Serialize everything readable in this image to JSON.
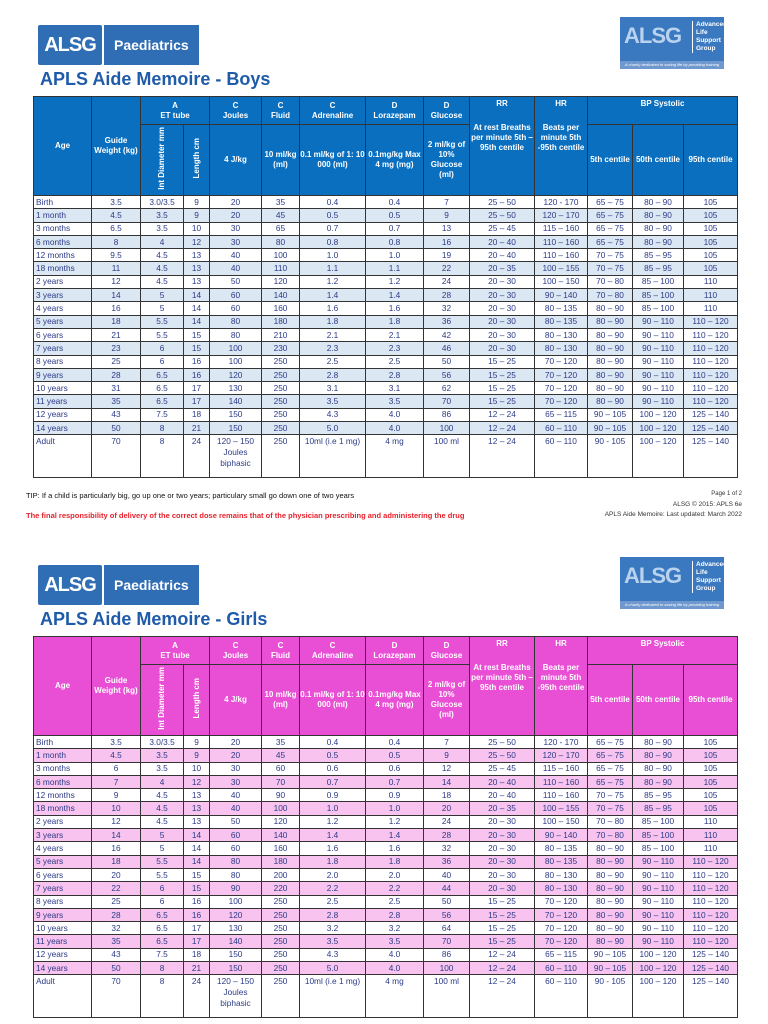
{
  "logo": {
    "name": "Paediatrics",
    "mark": "ALSG",
    "alsg_lines": [
      "Advanced",
      "Life",
      "Support",
      "Group"
    ],
    "alsg_tagline": "A charity dedicated to saving life by providing training"
  },
  "headers": {
    "age": "Age",
    "weight": "Guide Weight (kg)",
    "a": "A",
    "et": "ET tube",
    "c1": "C",
    "joules": "Joules",
    "c2": "C",
    "fluid": "Fluid",
    "c3": "C",
    "adrenaline": "Adrenaline",
    "d1": "D",
    "lorazepam": "Lorazepam",
    "d2": "D",
    "glucose": "Glucose",
    "rr": "RR",
    "hr": "HR",
    "bp": "BP Systolic",
    "diam": "Int Diameter mm",
    "length": "Length cm",
    "joules_sub": "4 J/kg",
    "fluid_sub": "10 ml/kg (ml)",
    "adr_sub": "0.1 ml/kg of 1: 10 000 (ml)",
    "lor_sub": "0.1mg/kg Max 4 mg (mg)",
    "glu_sub": "2 ml/kg of 10% Glucose (ml)",
    "rr_sub": "At rest Breaths per minute 5th – 95th centile",
    "hr_sub": "Beats per minute 5th -95th centile",
    "bp5": "5th centile",
    "bp50": "50th centile",
    "bp95": "95th centile"
  },
  "boys": {
    "title": "APLS Aide Memoire - Boys",
    "rows": [
      [
        "Birth",
        "3.5",
        "3.0/3.5",
        "9",
        "20",
        "35",
        "0.4",
        "0.4",
        "7",
        "25 – 50",
        "120 - 170",
        "65 – 75",
        "80 – 90",
        "105"
      ],
      [
        "1 month",
        "4.5",
        "3.5",
        "9",
        "20",
        "45",
        "0.5",
        "0.5",
        "9",
        "25 – 50",
        "120 – 170",
        "65 – 75",
        "80 – 90",
        "105"
      ],
      [
        "3 months",
        "6.5",
        "3.5",
        "10",
        "30",
        "65",
        "0.7",
        "0.7",
        "13",
        "25 – 45",
        "115 – 160",
        "65 – 75",
        "80 – 90",
        "105"
      ],
      [
        "6 months",
        "8",
        "4",
        "12",
        "30",
        "80",
        "0.8",
        "0.8",
        "16",
        "20 – 40",
        "110 – 160",
        "65 – 75",
        "80 – 90",
        "105"
      ],
      [
        "12 months",
        "9.5",
        "4.5",
        "13",
        "40",
        "100",
        "1.0",
        "1.0",
        "19",
        "20 – 40",
        "110 – 160",
        "70 – 75",
        "85 – 95",
        "105"
      ],
      [
        "18 months",
        "11",
        "4.5",
        "13",
        "40",
        "110",
        "1.1",
        "1.1",
        "22",
        "20 – 35",
        "100 – 155",
        "70 – 75",
        "85 – 95",
        "105"
      ],
      [
        "2 years",
        "12",
        "4.5",
        "13",
        "50",
        "120",
        "1.2",
        "1.2",
        "24",
        "20 – 30",
        "100 – 150",
        "70 – 80",
        "85 – 100",
        "110"
      ],
      [
        "3 years",
        "14",
        "5",
        "14",
        "60",
        "140",
        "1.4",
        "1.4",
        "28",
        "20 – 30",
        "90 – 140",
        "70 – 80",
        "85 – 100",
        "110"
      ],
      [
        "4 years",
        "16",
        "5",
        "14",
        "60",
        "160",
        "1.6",
        "1.6",
        "32",
        "20 – 30",
        "80 – 135",
        "80 – 90",
        "85 – 100",
        "110"
      ],
      [
        "5 years",
        "18",
        "5.5",
        "14",
        "80",
        "180",
        "1.8",
        "1.8",
        "36",
        "20 – 30",
        "80 – 135",
        "80 – 90",
        "90 – 110",
        "110 – 120"
      ],
      [
        "6 years",
        "21",
        "5.5",
        "15",
        "80",
        "210",
        "2.1",
        "2.1",
        "42",
        "20 – 30",
        "80 – 130",
        "80 – 90",
        "90 – 110",
        "110 – 120"
      ],
      [
        "7 years",
        "23",
        "6",
        "15",
        "100",
        "230",
        "2.3",
        "2.3",
        "46",
        "20 – 30",
        "80 – 130",
        "80 – 90",
        "90 – 110",
        "110 – 120"
      ],
      [
        "8 years",
        "25",
        "6",
        "16",
        "100",
        "250",
        "2.5",
        "2.5",
        "50",
        "15 – 25",
        "70 – 120",
        "80 – 90",
        "90 – 110",
        "110 – 120"
      ],
      [
        "9 years",
        "28",
        "6.5",
        "16",
        "120",
        "250",
        "2.8",
        "2.8",
        "56",
        "15 – 25",
        "70 – 120",
        "80 – 90",
        "90 – 110",
        "110 – 120"
      ],
      [
        "10 years",
        "31",
        "6.5",
        "17",
        "130",
        "250",
        "3.1",
        "3.1",
        "62",
        "15 – 25",
        "70 – 120",
        "80 – 90",
        "90 – 110",
        "110 – 120"
      ],
      [
        "11 years",
        "35",
        "6.5",
        "17",
        "140",
        "250",
        "3.5",
        "3.5",
        "70",
        "15 – 25",
        "70 – 120",
        "80 – 90",
        "90 – 110",
        "110 – 120"
      ],
      [
        "12 years",
        "43",
        "7.5",
        "18",
        "150",
        "250",
        "4.3",
        "4.0",
        "86",
        "12 – 24",
        "65 – 115",
        "90 – 105",
        "100 – 120",
        "125 – 140"
      ],
      [
        "14 years",
        "50",
        "8",
        "21",
        "150",
        "250",
        "5.0",
        "4.0",
        "100",
        "12 – 24",
        "60 – 110",
        "90 – 105",
        "100 – 120",
        "125 – 140"
      ],
      [
        "Adult",
        "70",
        "8",
        "24",
        "120 – 150 Joules biphasic",
        "250",
        "10ml (i.e 1 mg)",
        "4 mg",
        "100 ml",
        "12 – 24",
        "60 – 110",
        "90 - 105",
        "100 – 120",
        "125 – 140"
      ]
    ]
  },
  "girls": {
    "title": "APLS Aide Memoire - Girls",
    "rows": [
      [
        "Birth",
        "3.5",
        "3.0/3.5",
        "9",
        "20",
        "35",
        "0.4",
        "0.4",
        "7",
        "25 – 50",
        "120 - 170",
        "65 – 75",
        "80 – 90",
        "105"
      ],
      [
        "1 month",
        "4.5",
        "3.5",
        "9",
        "20",
        "45",
        "0.5",
        "0.5",
        "9",
        "25 – 50",
        "120 – 170",
        "65 – 75",
        "80 – 90",
        "105"
      ],
      [
        "3 months",
        "6",
        "3.5",
        "10",
        "30",
        "60",
        "0.6",
        "0.6",
        "12",
        "25 – 45",
        "115 – 160",
        "65 – 75",
        "80 – 90",
        "105"
      ],
      [
        "6 months",
        "7",
        "4",
        "12",
        "30",
        "70",
        "0.7",
        "0.7",
        "14",
        "20 – 40",
        "110 – 160",
        "65 – 75",
        "80 – 90",
        "105"
      ],
      [
        "12 months",
        "9",
        "4.5",
        "13",
        "40",
        "90",
        "0.9",
        "0.9",
        "18",
        "20 – 40",
        "110 – 160",
        "70 – 75",
        "85 – 95",
        "105"
      ],
      [
        "18 months",
        "10",
        "4.5",
        "13",
        "40",
        "100",
        "1.0",
        "1.0",
        "20",
        "20 – 35",
        "100 – 155",
        "70 – 75",
        "85 – 95",
        "105"
      ],
      [
        "2 years",
        "12",
        "4.5",
        "13",
        "50",
        "120",
        "1.2",
        "1.2",
        "24",
        "20 – 30",
        "100 – 150",
        "70 – 80",
        "85 – 100",
        "110"
      ],
      [
        "3 years",
        "14",
        "5",
        "14",
        "60",
        "140",
        "1.4",
        "1.4",
        "28",
        "20 – 30",
        "90 – 140",
        "70 – 80",
        "85 – 100",
        "110"
      ],
      [
        "4 years",
        "16",
        "5",
        "14",
        "60",
        "160",
        "1.6",
        "1.6",
        "32",
        "20 – 30",
        "80 – 135",
        "80 – 90",
        "85 – 100",
        "110"
      ],
      [
        "5 years",
        "18",
        "5.5",
        "14",
        "80",
        "180",
        "1.8",
        "1.8",
        "36",
        "20 – 30",
        "80 – 135",
        "80 – 90",
        "90 – 110",
        "110 – 120"
      ],
      [
        "6 years",
        "20",
        "5.5",
        "15",
        "80",
        "200",
        "2.0",
        "2.0",
        "40",
        "20 – 30",
        "80 – 130",
        "80 – 90",
        "90 – 110",
        "110 – 120"
      ],
      [
        "7 years",
        "22",
        "6",
        "15",
        "90",
        "220",
        "2.2",
        "2.2",
        "44",
        "20 – 30",
        "80 – 130",
        "80 – 90",
        "90 – 110",
        "110 – 120"
      ],
      [
        "8 years",
        "25",
        "6",
        "16",
        "100",
        "250",
        "2.5",
        "2.5",
        "50",
        "15 – 25",
        "70 – 120",
        "80 – 90",
        "90 – 110",
        "110 – 120"
      ],
      [
        "9 years",
        "28",
        "6.5",
        "16",
        "120",
        "250",
        "2.8",
        "2.8",
        "56",
        "15 – 25",
        "70 – 120",
        "80 – 90",
        "90 – 110",
        "110 – 120"
      ],
      [
        "10 years",
        "32",
        "6.5",
        "17",
        "130",
        "250",
        "3.2",
        "3.2",
        "64",
        "15 – 25",
        "70 – 120",
        "80 – 90",
        "90 – 110",
        "110 – 120"
      ],
      [
        "11 years",
        "35",
        "6.5",
        "17",
        "140",
        "250",
        "3.5",
        "3.5",
        "70",
        "15 – 25",
        "70 – 120",
        "80 – 90",
        "90 – 110",
        "110 – 120"
      ],
      [
        "12 years",
        "43",
        "7.5",
        "18",
        "150",
        "250",
        "4.3",
        "4.0",
        "86",
        "12 – 24",
        "65 – 115",
        "90 – 105",
        "100 – 120",
        "125 – 140"
      ],
      [
        "14 years",
        "50",
        "8",
        "21",
        "150",
        "250",
        "5.0",
        "4.0",
        "100",
        "12 – 24",
        "60 – 110",
        "90 – 105",
        "100 – 120",
        "125 – 140"
      ],
      [
        "Adult",
        "70",
        "8",
        "24",
        "120 – 150 Joules biphasic",
        "250",
        "10ml (i.e 1 mg)",
        "4 mg",
        "100 ml",
        "12 – 24",
        "60 – 110",
        "90 - 105",
        "100 – 120",
        "125 – 140"
      ]
    ]
  },
  "footer": {
    "tip": "TIP: If a child is particularly big, go up one or two years; particulary small go down one of two years",
    "warning": "The final responsibility of delivery of the correct dose remains that of the physician prescribing and administering the drug",
    "page": "Page 1 of 2",
    "copyright": "ALSG © 2015: APLS 6e",
    "updated": "APLS Aide Memoire: Last updated: March 2022"
  },
  "colors": {
    "boys_header": "#0a6fbf",
    "boys_alt": "#dce7f4",
    "girls_header": "#e94fd4",
    "girls_alt": "#f8c3ef",
    "warning": "#e8202a",
    "text": "#2b3a87"
  }
}
